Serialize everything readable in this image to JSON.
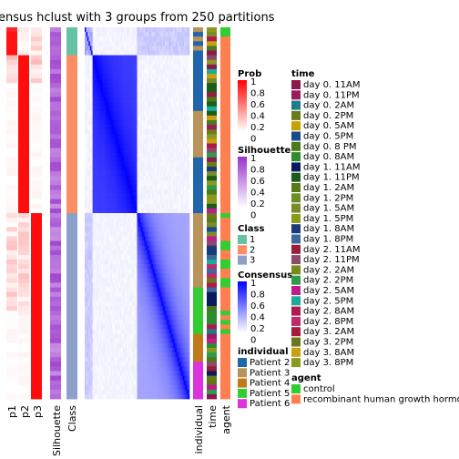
{
  "chart_data": {
    "type": "heatmap",
    "title": "ensus hclust with 3 groups from 250 partitions",
    "prob_columns": [
      "p1",
      "p2",
      "p3"
    ],
    "col_labels": [
      "p1",
      "p2",
      "p3",
      "Silhouette",
      "Class",
      "individual",
      "time",
      "agent"
    ],
    "groups": [
      {
        "class": "1",
        "samples": 6,
        "color": "#66C2A5"
      },
      {
        "class": "2",
        "samples": 34,
        "color": "#FC8D62"
      },
      {
        "class": "3",
        "samples": 40,
        "color": "#8DA0CB"
      }
    ],
    "legends": {
      "prob": {
        "title": "Prob",
        "ticks": [
          "1",
          "0.8",
          "0.6",
          "0.4",
          "0.2",
          "0"
        ],
        "low": "#FFFFFF",
        "high": "#FF0000"
      },
      "silhouette": {
        "title": "Silhouette",
        "ticks": [
          "1",
          "0.8",
          "0.6",
          "0.4",
          "0.2",
          "0"
        ],
        "low": "#FFFFFF",
        "high": "#9932CC"
      },
      "class": {
        "title": "Class",
        "items": [
          {
            "label": "1",
            "color": "#66C2A5"
          },
          {
            "label": "2",
            "color": "#FC8D62"
          },
          {
            "label": "3",
            "color": "#8DA0CB"
          }
        ]
      },
      "consensus": {
        "title": "Consensus",
        "ticks": [
          "1",
          "0.8",
          "0.6",
          "0.4",
          "0.2",
          "0"
        ],
        "low": "#FFFFFF",
        "high": "#0000FF"
      },
      "individual": {
        "title": "individual",
        "items": [
          {
            "label": "Patient 2",
            "color": "#2166AC"
          },
          {
            "label": "Patient 3",
            "color": "#B8935A"
          },
          {
            "label": "Patient 4",
            "color": "#C07A1A"
          },
          {
            "label": "Patient 5",
            "color": "#33CC33"
          },
          {
            "label": "Patient 6",
            "color": "#DD33DD"
          }
        ]
      },
      "time": {
        "title": "time",
        "items": [
          {
            "label": "day 0. 11AM",
            "color": "#8B1A4A"
          },
          {
            "label": "day 0. 11PM",
            "color": "#9B1B5B"
          },
          {
            "label": "day 0. 2AM",
            "color": "#1F7A8C"
          },
          {
            "label": "day 0. 2PM",
            "color": "#6B7A1A"
          },
          {
            "label": "day 0. 5AM",
            "color": "#C8A000"
          },
          {
            "label": "day 0. 5PM",
            "color": "#1A4A8C"
          },
          {
            "label": "day 0. 8 PM",
            "color": "#4A7A1A"
          },
          {
            "label": "day 0. 8AM",
            "color": "#2E8B2E"
          },
          {
            "label": "day 1. 11AM",
            "color": "#0A1A5C"
          },
          {
            "label": "day 1. 11PM",
            "color": "#1A5C1A"
          },
          {
            "label": "day 1. 2AM",
            "color": "#5A7A1A"
          },
          {
            "label": "day 1. 2PM",
            "color": "#6B8E23"
          },
          {
            "label": "day 1. 5AM",
            "color": "#7A8B2A"
          },
          {
            "label": "day 1. 5PM",
            "color": "#8B9A1A"
          },
          {
            "label": "day 1. 8AM",
            "color": "#1A3A7A"
          },
          {
            "label": "day 1. 8PM",
            "color": "#3A6A9A"
          },
          {
            "label": "day 2. 11AM",
            "color": "#9B1B3B"
          },
          {
            "label": "day 2. 11PM",
            "color": "#8B4A6A"
          },
          {
            "label": "day 2. 2AM",
            "color": "#7A8A1A"
          },
          {
            "label": "day 2. 2PM",
            "color": "#2E9B4A"
          },
          {
            "label": "day 2. 5AM",
            "color": "#C01A8C"
          },
          {
            "label": "day 2. 5PM",
            "color": "#1AAB9B"
          },
          {
            "label": "day 2. 8AM",
            "color": "#B01A4A"
          },
          {
            "label": "day 2. 8PM",
            "color": "#C02A6A"
          },
          {
            "label": "day 3. 2AM",
            "color": "#AA1A3A"
          },
          {
            "label": "day 3. 2PM",
            "color": "#6A7A1A"
          },
          {
            "label": "day 3. 8AM",
            "color": "#C8A010"
          },
          {
            "label": "day 3. 8PM",
            "color": "#8A9A20"
          }
        ]
      },
      "agent": {
        "title": "agent",
        "items": [
          {
            "label": "control",
            "color": "#33CC33"
          },
          {
            "label": "recombinant human growth hormone",
            "color": "#FF7F50"
          }
        ]
      }
    }
  }
}
